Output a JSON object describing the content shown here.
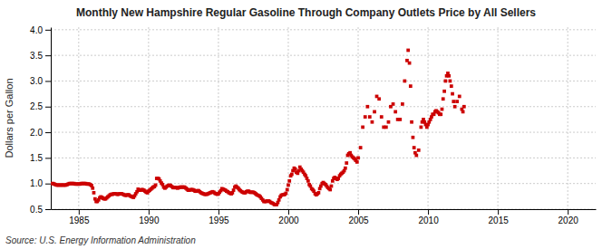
{
  "chart_data": {
    "type": "scatter",
    "title": "Monthly New Hampshire Regular Gasoline Through Company Outlets Price by All Sellers",
    "y_label": "Dollars per Gallon",
    "annotations": [
      "Source: U.S. Energy Information Administration"
    ],
    "color": "#CC0000",
    "marker": "square",
    "grid": true,
    "xlim": [
      1983.0,
      2022.0
    ],
    "ylim": [
      0.5,
      4.05
    ],
    "xticks": [
      1985,
      1990,
      1995,
      2000,
      2005,
      2010,
      2015,
      2020
    ],
    "yticks": [
      0.5,
      {
        "value": 1.0,
        "label": "1.0"
      },
      1.5,
      {
        "value": 2.0,
        "label": "2.0"
      },
      2.5,
      {
        "value": 3.0,
        "label": "3.0"
      },
      3.5,
      {
        "value": 4.0,
        "label": "4.0"
      }
    ],
    "x": [
      1983.08,
      1983.17,
      1983.25,
      1983.33,
      1983.42,
      1983.5,
      1983.58,
      1983.67,
      1983.75,
      1983.83,
      1983.92,
      1984.0,
      1984.08,
      1984.17,
      1984.25,
      1984.33,
      1984.42,
      1984.5,
      1984.58,
      1984.67,
      1984.75,
      1984.83,
      1984.92,
      1985.0,
      1985.08,
      1985.17,
      1985.25,
      1985.33,
      1985.42,
      1985.5,
      1985.58,
      1985.67,
      1985.75,
      1985.83,
      1985.92,
      1986.0,
      1986.08,
      1986.17,
      1986.25,
      1986.33,
      1986.42,
      1986.5,
      1986.58,
      1986.67,
      1986.75,
      1986.83,
      1986.92,
      1987.0,
      1987.08,
      1987.17,
      1987.25,
      1987.33,
      1987.42,
      1987.5,
      1987.58,
      1987.67,
      1987.75,
      1987.83,
      1987.92,
      1988.0,
      1988.08,
      1988.17,
      1988.25,
      1988.33,
      1988.42,
      1988.5,
      1988.58,
      1988.67,
      1988.75,
      1988.83,
      1988.92,
      1989.0,
      1989.08,
      1989.17,
      1989.25,
      1989.33,
      1989.42,
      1989.5,
      1989.58,
      1989.67,
      1989.75,
      1989.83,
      1989.92,
      1990.0,
      1990.08,
      1990.17,
      1990.25,
      1990.33,
      1990.42,
      1990.5,
      1990.58,
      1990.67,
      1990.75,
      1990.83,
      1990.92,
      1991.0,
      1991.08,
      1991.17,
      1991.25,
      1991.33,
      1991.42,
      1991.5,
      1991.58,
      1991.67,
      1991.75,
      1991.83,
      1991.92,
      1992.0,
      1992.08,
      1992.17,
      1992.25,
      1992.33,
      1992.42,
      1992.5,
      1992.58,
      1992.67,
      1992.75,
      1992.83,
      1992.92,
      1993.0,
      1993.08,
      1993.17,
      1993.25,
      1993.33,
      1993.42,
      1993.5,
      1993.58,
      1993.67,
      1993.75,
      1993.83,
      1993.92,
      1994.0,
      1994.08,
      1994.17,
      1994.25,
      1994.33,
      1994.42,
      1994.5,
      1994.58,
      1994.67,
      1994.75,
      1994.83,
      1994.92,
      1995.0,
      1995.08,
      1995.17,
      1995.25,
      1995.33,
      1995.42,
      1995.5,
      1995.58,
      1995.67,
      1995.75,
      1995.83,
      1995.92,
      1996.0,
      1996.08,
      1996.17,
      1996.25,
      1996.33,
      1996.42,
      1996.5,
      1996.58,
      1996.67,
      1996.75,
      1996.83,
      1996.92,
      1997.0,
      1997.08,
      1997.17,
      1997.25,
      1997.33,
      1997.42,
      1997.5,
      1997.58,
      1997.67,
      1997.75,
      1997.83,
      1997.92,
      1998.0,
      1998.08,
      1998.17,
      1998.25,
      1998.33,
      1998.42,
      1998.5,
      1998.58,
      1998.67,
      1998.75,
      1998.83,
      1998.92,
      1999.0,
      1999.08,
      1999.17,
      1999.25,
      1999.33,
      1999.42,
      1999.5,
      1999.58,
      1999.67,
      1999.75,
      1999.83,
      1999.92,
      2000.0,
      2000.08,
      2000.17,
      2000.25,
      2000.33,
      2000.42,
      2000.5,
      2000.58,
      2000.67,
      2000.75,
      2000.83,
      2000.92,
      2001.0,
      2001.08,
      2001.17,
      2001.25,
      2001.33,
      2001.42,
      2001.5,
      2001.58,
      2001.67,
      2001.75,
      2001.83,
      2001.92,
      2002.0,
      2002.08,
      2002.17,
      2002.25,
      2002.33,
      2002.42,
      2002.5,
      2002.58,
      2002.67,
      2002.75,
      2002.83,
      2002.92,
      2003.0,
      2003.08,
      2003.17,
      2003.25,
      2003.33,
      2003.42,
      2003.5,
      2003.58,
      2003.67,
      2003.75,
      2003.83,
      2003.92,
      2004.0,
      2004.08,
      2004.17,
      2004.25,
      2004.33,
      2004.42,
      2004.5,
      2004.58,
      2004.67,
      2004.75,
      2004.83,
      2004.92,
      2005.0,
      2005.17,
      2005.33,
      2005.5,
      2005.67,
      2005.83,
      2006.0,
      2006.17,
      2006.33,
      2006.5,
      2006.67,
      2006.83,
      2007.0,
      2007.17,
      2007.33,
      2007.5,
      2007.67,
      2007.83,
      2008.0,
      2008.17,
      2008.33,
      2008.5,
      2008.58,
      2008.67,
      2008.75,
      2008.83,
      2008.92,
      2009.0,
      2009.08,
      2009.17,
      2009.33,
      2009.5,
      2009.58,
      2009.67,
      2009.75,
      2009.83,
      2009.92,
      2010.0,
      2010.08,
      2010.17,
      2010.25,
      2010.33,
      2010.42,
      2010.5,
      2010.58,
      2010.67,
      2010.75,
      2010.83,
      2010.92,
      2011.0,
      2011.08,
      2011.17,
      2011.25,
      2011.33,
      2011.42,
      2011.5,
      2011.58,
      2011.67,
      2011.75,
      2011.83,
      2011.92,
      2012.08,
      2012.25,
      2012.42,
      2012.5,
      2012.58
    ],
    "values": [
      1.0,
      1.0,
      0.99,
      0.98,
      0.97,
      0.97,
      0.97,
      0.97,
      0.97,
      0.97,
      0.97,
      0.97,
      0.97,
      0.98,
      0.99,
      1.0,
      1.0,
      1.0,
      1.0,
      1.0,
      0.99,
      0.99,
      0.99,
      0.99,
      0.99,
      1.0,
      1.0,
      1.0,
      1.0,
      1.0,
      0.99,
      0.99,
      0.99,
      0.98,
      0.96,
      0.91,
      0.82,
      0.7,
      0.65,
      0.65,
      0.68,
      0.72,
      0.74,
      0.73,
      0.71,
      0.7,
      0.7,
      0.72,
      0.74,
      0.76,
      0.78,
      0.79,
      0.79,
      0.8,
      0.8,
      0.8,
      0.79,
      0.79,
      0.8,
      0.8,
      0.8,
      0.79,
      0.78,
      0.77,
      0.77,
      0.78,
      0.78,
      0.76,
      0.75,
      0.74,
      0.73,
      0.76,
      0.8,
      0.84,
      0.89,
      0.87,
      0.87,
      0.88,
      0.88,
      0.87,
      0.85,
      0.83,
      0.82,
      0.85,
      0.87,
      0.89,
      0.91,
      0.93,
      0.94,
      0.97,
      1.1,
      1.1,
      1.09,
      1.05,
      1.01,
      0.98,
      0.93,
      0.91,
      0.93,
      0.95,
      0.96,
      0.97,
      0.96,
      0.94,
      0.92,
      0.92,
      0.92,
      0.92,
      0.91,
      0.92,
      0.93,
      0.93,
      0.93,
      0.93,
      0.93,
      0.91,
      0.89,
      0.87,
      0.87,
      0.88,
      0.88,
      0.88,
      0.87,
      0.85,
      0.85,
      0.86,
      0.86,
      0.84,
      0.82,
      0.81,
      0.8,
      0.79,
      0.79,
      0.79,
      0.8,
      0.81,
      0.82,
      0.83,
      0.84,
      0.83,
      0.81,
      0.8,
      0.79,
      0.8,
      0.83,
      0.86,
      0.9,
      0.89,
      0.88,
      0.87,
      0.85,
      0.84,
      0.82,
      0.81,
      0.8,
      0.82,
      0.87,
      0.93,
      0.95,
      0.93,
      0.91,
      0.88,
      0.86,
      0.84,
      0.83,
      0.82,
      0.82,
      0.84,
      0.85,
      0.85,
      0.83,
      0.83,
      0.83,
      0.83,
      0.82,
      0.8,
      0.78,
      0.77,
      0.76,
      0.74,
      0.71,
      0.68,
      0.65,
      0.65,
      0.65,
      0.66,
      0.66,
      0.65,
      0.63,
      0.62,
      0.61,
      0.59,
      0.59,
      0.59,
      0.63,
      0.68,
      0.74,
      0.77,
      0.78,
      0.78,
      0.79,
      0.81,
      0.88,
      0.97,
      1.05,
      1.15,
      1.18,
      1.25,
      1.3,
      1.28,
      1.22,
      1.2,
      1.25,
      1.32,
      1.28,
      1.25,
      1.22,
      1.18,
      1.15,
      1.1,
      1.05,
      0.98,
      0.95,
      0.9,
      0.88,
      0.85,
      0.8,
      0.78,
      0.8,
      0.82,
      0.9,
      0.95,
      1.0,
      1.02,
      1.0,
      0.98,
      0.95,
      0.92,
      0.9,
      0.88,
      0.95,
      1.05,
      1.1,
      1.12,
      1.1,
      1.08,
      1.1,
      1.15,
      1.18,
      1.2,
      1.22,
      1.25,
      1.3,
      1.4,
      1.55,
      1.58,
      1.6,
      1.55,
      1.52,
      1.5,
      1.48,
      1.45,
      1.42,
      1.5,
      1.7,
      2.1,
      2.3,
      2.5,
      2.3,
      2.2,
      2.4,
      2.7,
      2.65,
      2.3,
      2.1,
      2.1,
      2.2,
      2.5,
      2.55,
      2.4,
      2.25,
      2.25,
      2.55,
      3.0,
      3.4,
      3.6,
      3.35,
      2.9,
      2.2,
      1.9,
      1.7,
      1.6,
      1.55,
      1.65,
      2.1,
      2.2,
      2.25,
      2.2,
      2.15,
      2.1,
      2.15,
      2.2,
      2.25,
      2.3,
      2.35,
      2.35,
      2.4,
      2.42,
      2.4,
      2.38,
      2.35,
      2.35,
      2.45,
      2.65,
      2.8,
      3.0,
      3.1,
      3.15,
      3.1,
      3.0,
      2.9,
      2.75,
      2.6,
      2.5,
      2.6,
      2.7,
      2.45,
      2.4,
      2.5
    ]
  }
}
